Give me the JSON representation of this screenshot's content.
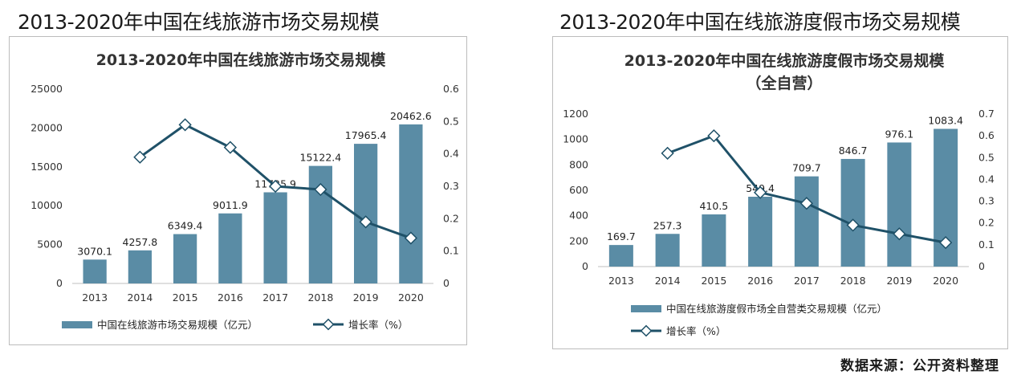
{
  "headings": {
    "left": "2013-2020年中国在线旅游市场交易规模",
    "right": "2013-2020年中国在线旅游度假市场交易规模"
  },
  "source": "数据来源：公开资料整理",
  "colors": {
    "bar": "#5a8ca5",
    "line": "#1f5168",
    "marker_fill": "#ffffff"
  },
  "chart_data": [
    {
      "type": "bar",
      "title": "2013-2020年中国在线旅游市场交易规模",
      "subtitle": "",
      "categories": [
        "2013",
        "2014",
        "2015",
        "2016",
        "2017",
        "2018",
        "2019",
        "2020"
      ],
      "series": [
        {
          "name": "中国在线旅游市场交易规模（亿元）",
          "type": "bar",
          "axis": "left",
          "values": [
            3070.1,
            4257.8,
            6349.4,
            9011.9,
            11725.9,
            15122.4,
            17965.4,
            20462.6
          ]
        },
        {
          "name": "增长率（%）",
          "type": "line",
          "axis": "right",
          "values": [
            null,
            0.39,
            0.49,
            0.42,
            0.3,
            0.29,
            0.19,
            0.14
          ]
        }
      ],
      "y_left": {
        "min": 0,
        "max": 25000,
        "step": 5000,
        "ticks": [
          "0",
          "5000",
          "10000",
          "15000",
          "20000",
          "25000"
        ]
      },
      "y_right": {
        "min": 0,
        "max": 0.6,
        "step": 0.1,
        "ticks": [
          "0",
          "0.1",
          "0.2",
          "0.3",
          "0.4",
          "0.5",
          "0.6"
        ]
      },
      "data_labels": [
        "3070.1",
        "4257.8",
        "6349.4",
        "9011.9",
        "11725.9",
        "15122.4",
        "17965.4",
        "20462.6"
      ],
      "grid": false,
      "legend_position": "bottom"
    },
    {
      "type": "bar",
      "title": "2013-2020年中国在线旅游度假市场交易规模",
      "subtitle": "（全自营）",
      "categories": [
        "2013",
        "2014",
        "2015",
        "2016",
        "2017",
        "2018",
        "2019",
        "2020"
      ],
      "series": [
        {
          "name": "中国在线旅游度假市场全自营类交易规模（亿元）",
          "type": "bar",
          "axis": "left",
          "values": [
            169.7,
            257.3,
            410.5,
            549.4,
            709.7,
            846.7,
            976.1,
            1083.4
          ]
        },
        {
          "name": "增长率（%）",
          "type": "line",
          "axis": "right",
          "values": [
            null,
            0.52,
            0.6,
            0.34,
            0.29,
            0.19,
            0.15,
            0.11
          ]
        }
      ],
      "y_left": {
        "min": 0,
        "max": 1200,
        "step": 200,
        "ticks": [
          "0",
          "200",
          "400",
          "600",
          "800",
          "1000",
          "1200"
        ]
      },
      "y_right": {
        "min": 0,
        "max": 0.7,
        "step": 0.1,
        "ticks": [
          "0",
          "0.1",
          "0.2",
          "0.3",
          "0.4",
          "0.5",
          "0.6",
          "0.7"
        ]
      },
      "data_labels": [
        "169.7",
        "257.3",
        "410.5",
        "549.4",
        "709.7",
        "846.7",
        "976.1",
        "1083.4"
      ],
      "grid": false,
      "legend_position": "bottom"
    }
  ]
}
